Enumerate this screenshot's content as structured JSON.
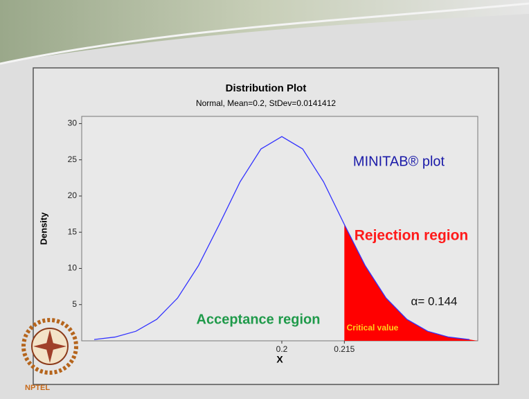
{
  "chart_data": {
    "type": "area-line",
    "title": "Distribution Plot",
    "subtitle": "Normal, Mean=0.2, StDev=0.0141412",
    "x_label": "X",
    "y_label": "Density",
    "x": [
      0.155,
      0.16,
      0.165,
      0.17,
      0.175,
      0.18,
      0.185,
      0.19,
      0.195,
      0.2,
      0.205,
      0.21,
      0.215,
      0.22,
      0.225,
      0.23,
      0.235,
      0.24,
      0.245
    ],
    "values": [
      0.18,
      0.52,
      1.32,
      2.97,
      5.91,
      10.38,
      16.07,
      21.97,
      26.5,
      28.21,
      26.5,
      21.97,
      16.07,
      10.38,
      5.91,
      2.97,
      1.32,
      0.52,
      0.18
    ],
    "color": "#3333ff",
    "shade_color": "#ff0000",
    "xlim": [
      0.152,
      0.247
    ],
    "ylim": [
      0,
      31
    ],
    "xticks": [
      0.2,
      0.215
    ],
    "yticks": [
      5,
      10,
      15,
      20,
      25,
      30
    ],
    "annotations": [
      "MINITAB® plot",
      "Rejection region",
      "α= 0.144",
      "Acceptance region",
      "Critical value"
    ]
  },
  "footer": {
    "logo_text": "NPTEL"
  }
}
